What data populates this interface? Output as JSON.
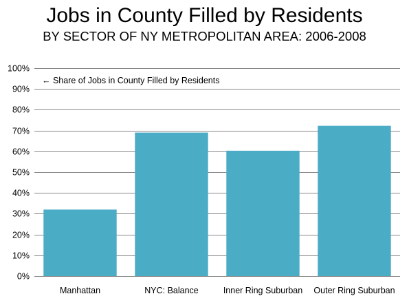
{
  "chart_data": {
    "type": "bar",
    "title": "Jobs in County Filled by Residents",
    "subtitle": "BY SECTOR OF NY METROPOLITAN AREA: 2006-2008",
    "categories": [
      "Manhattan",
      "NYC: Balance",
      "Inner Ring Suburban",
      "Outer Ring Suburban"
    ],
    "series": [
      {
        "values": [
          32,
          69,
          60.3,
          72.3
        ]
      }
    ],
    "ylim": [
      0,
      100
    ],
    "yticks": [
      "0%",
      "10%",
      "20%",
      "30%",
      "40%",
      "50%",
      "60%",
      "70%",
      "80%",
      "90%",
      "100%"
    ],
    "grid": true,
    "annotation": "← Share of Jobs in County Filled by Residents",
    "colors": {
      "bar": "#4bacc6",
      "grid": "#878787",
      "axis": "#878787"
    }
  }
}
